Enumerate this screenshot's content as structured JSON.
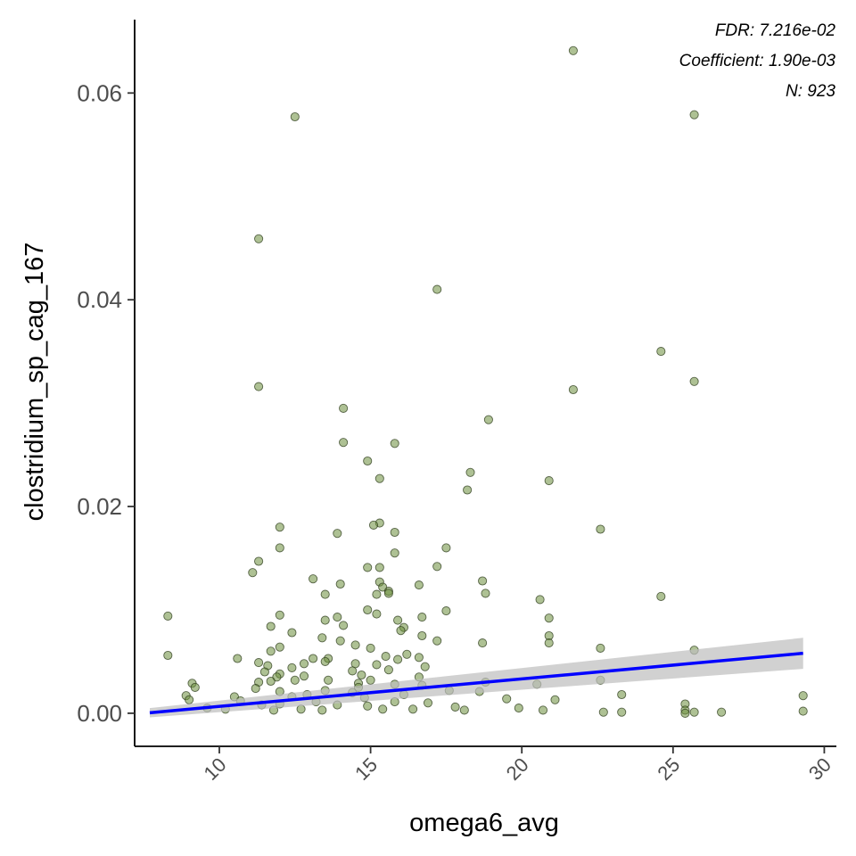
{
  "chart_data": {
    "type": "scatter",
    "title": "",
    "xlabel": "omega6_avg",
    "ylabel": "clostridium_sp_cag_167",
    "xlim": [
      7.2,
      30.4
    ],
    "ylim": [
      -0.0032,
      0.0671
    ],
    "x_ticks": [
      10,
      15,
      20,
      25,
      30
    ],
    "x_tick_labels": [
      "10",
      "15",
      "20",
      "25",
      "30"
    ],
    "y_ticks": [
      0.0,
      0.02,
      0.04,
      0.06
    ],
    "y_tick_labels": [
      "0.00",
      "0.02",
      "0.04",
      "0.06"
    ],
    "grid": false,
    "annotations": [
      "FDR: 7.216e-02",
      "Coefficient: 1.90e-03",
      "N: 923"
    ],
    "point_color": "#6b8e3d",
    "line_color": "#0000ff",
    "band_color": "#bebebe",
    "regression": {
      "x": [
        7.7,
        29.3
      ],
      "y": [
        5e-05,
        0.0058
      ],
      "band_lower": [
        -0.0004,
        0.0043
      ],
      "band_upper": [
        0.0005,
        0.0073
      ]
    },
    "points": [
      [
        21.7,
        0.0641
      ],
      [
        12.5,
        0.0577
      ],
      [
        25.7,
        0.0579
      ],
      [
        11.3,
        0.0459
      ],
      [
        17.2,
        0.041
      ],
      [
        24.6,
        0.035
      ],
      [
        11.3,
        0.0316
      ],
      [
        21.7,
        0.0313
      ],
      [
        25.7,
        0.0321
      ],
      [
        14.1,
        0.0295
      ],
      [
        18.9,
        0.0284
      ],
      [
        14.1,
        0.0262
      ],
      [
        15.8,
        0.0261
      ],
      [
        14.9,
        0.0244
      ],
      [
        18.3,
        0.0233
      ],
      [
        15.3,
        0.0227
      ],
      [
        20.9,
        0.0225
      ],
      [
        18.2,
        0.0216
      ],
      [
        15.3,
        0.0184
      ],
      [
        15.1,
        0.0182
      ],
      [
        12.0,
        0.018
      ],
      [
        22.6,
        0.0178
      ],
      [
        15.8,
        0.0175
      ],
      [
        13.9,
        0.0174
      ],
      [
        12.0,
        0.016
      ],
      [
        17.5,
        0.016
      ],
      [
        15.8,
        0.0155
      ],
      [
        11.3,
        0.0147
      ],
      [
        17.2,
        0.0142
      ],
      [
        14.9,
        0.0141
      ],
      [
        15.3,
        0.0141
      ],
      [
        11.1,
        0.0136
      ],
      [
        13.1,
        0.013
      ],
      [
        18.7,
        0.0128
      ],
      [
        15.3,
        0.0127
      ],
      [
        15.4,
        0.0122
      ],
      [
        14.0,
        0.0125
      ],
      [
        15.6,
        0.0118
      ],
      [
        18.8,
        0.0116
      ],
      [
        15.6,
        0.0116
      ],
      [
        16.6,
        0.0124
      ],
      [
        13.5,
        0.0115
      ],
      [
        15.2,
        0.0115
      ],
      [
        24.6,
        0.0113
      ],
      [
        20.6,
        0.011
      ],
      [
        14.9,
        0.01
      ],
      [
        17.5,
        0.0099
      ],
      [
        15.2,
        0.0096
      ],
      [
        13.9,
        0.0093
      ],
      [
        8.3,
        0.0094
      ],
      [
        12.0,
        0.0095
      ],
      [
        16.7,
        0.0093
      ],
      [
        20.9,
        0.0092
      ],
      [
        13.5,
        0.009
      ],
      [
        15.9,
        0.009
      ],
      [
        11.7,
        0.0084
      ],
      [
        14.1,
        0.0085
      ],
      [
        16.1,
        0.0083
      ],
      [
        12.4,
        0.0078
      ],
      [
        16.0,
        0.008
      ],
      [
        20.9,
        0.0075
      ],
      [
        16.7,
        0.0075
      ],
      [
        13.4,
        0.0073
      ],
      [
        14.0,
        0.007
      ],
      [
        17.2,
        0.007
      ],
      [
        18.7,
        0.0068
      ],
      [
        20.9,
        0.0068
      ],
      [
        14.5,
        0.0066
      ],
      [
        12.0,
        0.0064
      ],
      [
        11.7,
        0.006
      ],
      [
        22.6,
        0.0063
      ],
      [
        15.0,
        0.0063
      ],
      [
        25.7,
        0.0061
      ],
      [
        8.3,
        0.0056
      ],
      [
        10.6,
        0.0053
      ],
      [
        13.1,
        0.0053
      ],
      [
        13.6,
        0.0053
      ],
      [
        16.2,
        0.0057
      ],
      [
        15.5,
        0.0055
      ],
      [
        16.6,
        0.0054
      ],
      [
        11.3,
        0.0049
      ],
      [
        13.5,
        0.005
      ],
      [
        14.5,
        0.0048
      ],
      [
        15.9,
        0.0052
      ],
      [
        12.8,
        0.0048
      ],
      [
        11.6,
        0.0046
      ],
      [
        15.2,
        0.0047
      ],
      [
        16.8,
        0.0045
      ],
      [
        12.4,
        0.0044
      ],
      [
        11.5,
        0.004
      ],
      [
        14.4,
        0.0041
      ],
      [
        15.6,
        0.0042
      ],
      [
        12.0,
        0.0038
      ],
      [
        12.8,
        0.0036
      ],
      [
        14.7,
        0.0037
      ],
      [
        11.9,
        0.0035
      ],
      [
        16.6,
        0.0035
      ],
      [
        11.7,
        0.0031
      ],
      [
        13.6,
        0.0032
      ],
      [
        15.0,
        0.0032
      ],
      [
        12.5,
        0.0032
      ],
      [
        14.6,
        0.0029
      ],
      [
        18.8,
        0.003
      ],
      [
        9.1,
        0.0029
      ],
      [
        11.3,
        0.003
      ],
      [
        15.8,
        0.0028
      ],
      [
        16.7,
        0.0027
      ],
      [
        20.5,
        0.0028
      ],
      [
        22.6,
        0.0032
      ],
      [
        9.2,
        0.0025
      ],
      [
        11.2,
        0.0024
      ],
      [
        13.5,
        0.0022
      ],
      [
        14.6,
        0.0025
      ],
      [
        17.6,
        0.0022
      ],
      [
        18.6,
        0.0021
      ],
      [
        12.0,
        0.0021
      ],
      [
        12.9,
        0.0018
      ],
      [
        14.4,
        0.002
      ],
      [
        16.1,
        0.0018
      ],
      [
        8.9,
        0.0017
      ],
      [
        10.5,
        0.0016
      ],
      [
        23.3,
        0.0018
      ],
      [
        29.3,
        0.0017
      ],
      [
        12.4,
        0.0016
      ],
      [
        14.8,
        0.0015
      ],
      [
        19.5,
        0.0014
      ],
      [
        21.1,
        0.0013
      ],
      [
        9.0,
        0.0013
      ],
      [
        10.7,
        0.0012
      ],
      [
        13.2,
        0.0011
      ],
      [
        15.8,
        0.0011
      ],
      [
        16.9,
        0.001
      ],
      [
        12.0,
        0.0009
      ],
      [
        13.9,
        0.0008
      ],
      [
        25.4,
        0.0009
      ],
      [
        11.4,
        0.0008
      ],
      [
        14.9,
        0.0007
      ],
      [
        17.8,
        0.0006
      ],
      [
        19.9,
        0.0005
      ],
      [
        9.6,
        0.0005
      ],
      [
        10.2,
        0.0004
      ],
      [
        12.7,
        0.0004
      ],
      [
        15.4,
        0.0004
      ],
      [
        16.4,
        0.0004
      ],
      [
        18.1,
        0.0003
      ],
      [
        20.7,
        0.0003
      ],
      [
        11.8,
        0.0003
      ],
      [
        13.4,
        0.0003
      ],
      [
        25.4,
        0.0003
      ],
      [
        29.3,
        0.0002
      ],
      [
        25.7,
        0.0001
      ],
      [
        26.6,
        0.0001
      ],
      [
        23.3,
        0.0001
      ],
      [
        22.7,
        0.0001
      ],
      [
        25.4,
        0.0
      ]
    ]
  }
}
